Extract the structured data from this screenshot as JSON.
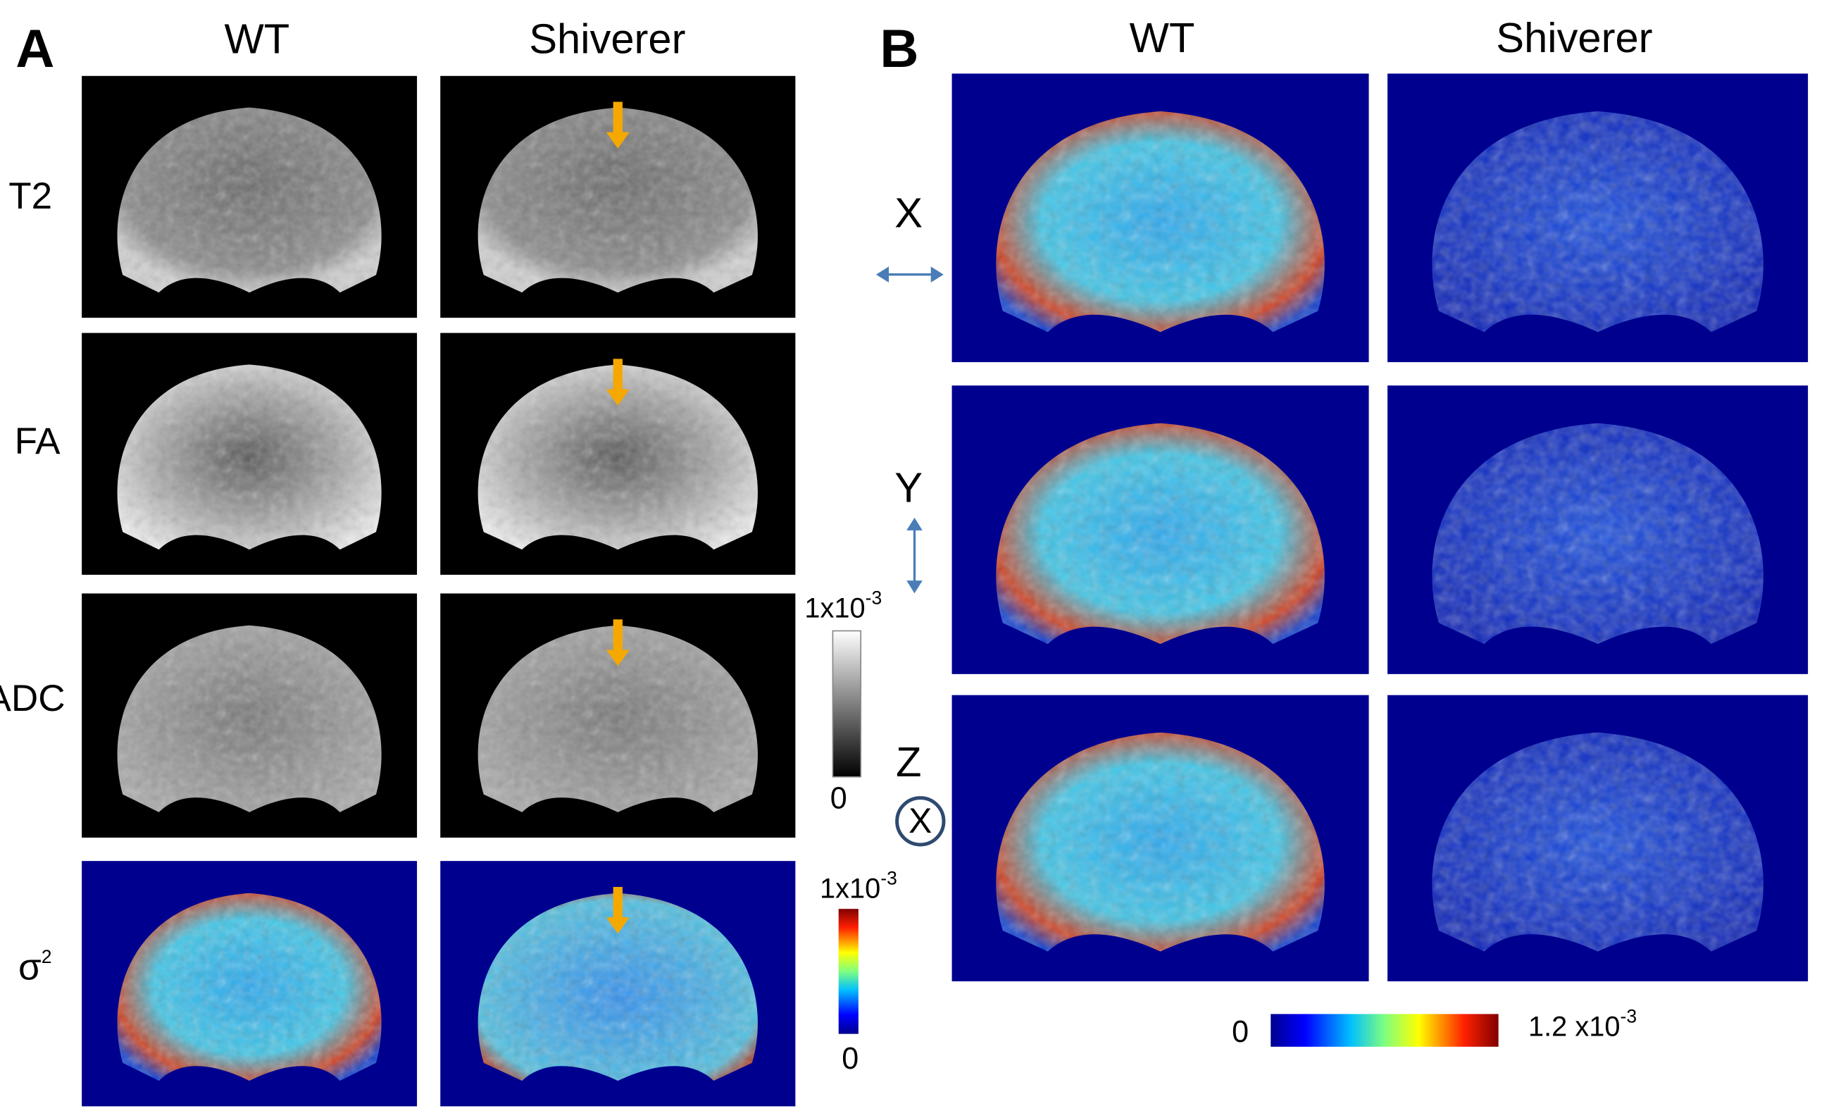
{
  "panel_a": {
    "label": "A",
    "columns": [
      "WT",
      "Shiverer"
    ],
    "rows": [
      "T2",
      "FA",
      "ADC"
    ],
    "sigma_row": {
      "base": "σ",
      "exp": "2"
    },
    "gray_scale": {
      "max_base": "1x10",
      "max_exp": "-3",
      "min": "0"
    },
    "color_scale": {
      "max_base": "1x10",
      "max_exp": "-3",
      "min": "0"
    }
  },
  "panel_b": {
    "label": "B",
    "columns": [
      "WT",
      "Shiverer"
    ],
    "rows": [
      "X",
      "Y",
      "Z"
    ],
    "circle_symbol": "X",
    "color_scale": {
      "min": "0",
      "max_base": "1.2 x10",
      "max_exp": "-3"
    }
  }
}
